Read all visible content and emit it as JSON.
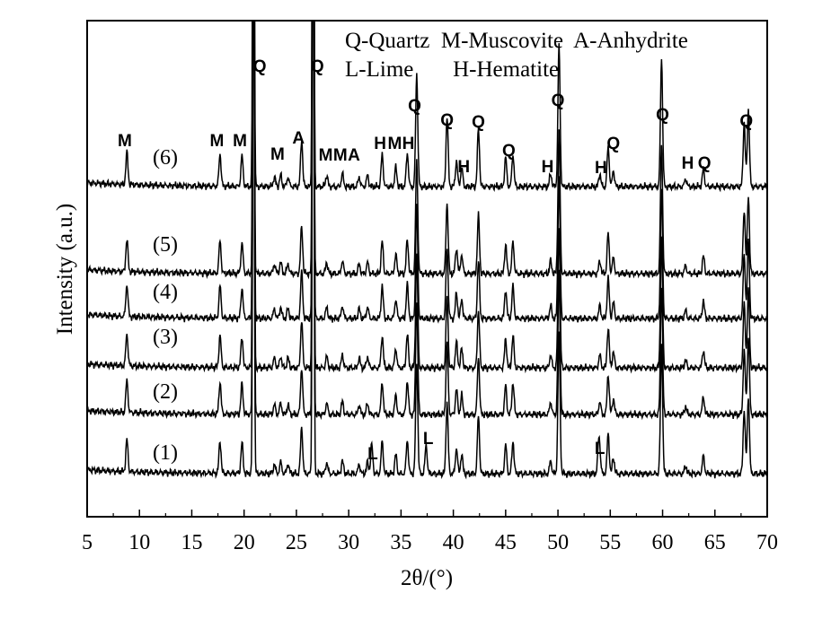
{
  "chart_data": {
    "type": "line",
    "title": "",
    "xlabel": "2θ/(°)",
    "ylabel": "Intensity (a.u.)",
    "xlim": [
      5,
      70
    ],
    "x_ticks": [
      5,
      10,
      15,
      20,
      25,
      30,
      35,
      40,
      45,
      50,
      55,
      60,
      65,
      70
    ],
    "y_ticks_shown": false,
    "grid": false,
    "legend": {
      "position": "top-right",
      "lines": [
        "Q-Quartz  M-Muscovite  A-Anhydrite",
        "L-Lime       H-Hematite"
      ]
    },
    "series": [
      {
        "name": "(1)",
        "baseline": 0,
        "extra_peaks": [
          32.2,
          37.4,
          53.9
        ]
      },
      {
        "name": "(2)",
        "baseline": 1
      },
      {
        "name": "(3)",
        "baseline": 2
      },
      {
        "name": "(4)",
        "baseline": 3
      },
      {
        "name": "(5)",
        "baseline": 4
      },
      {
        "name": "(6)",
        "baseline": 5
      }
    ],
    "common_peaks": [
      {
        "x": 8.8,
        "h": 1.0
      },
      {
        "x": 17.7,
        "h": 1.0
      },
      {
        "x": 19.8,
        "h": 0.95
      },
      {
        "x": 20.9,
        "h": 20.0
      },
      {
        "x": 22.9,
        "h": 0.3
      },
      {
        "x": 23.5,
        "h": 0.35
      },
      {
        "x": 24.2,
        "h": 0.3
      },
      {
        "x": 25.5,
        "h": 1.45
      },
      {
        "x": 26.6,
        "h": 25.0
      },
      {
        "x": 27.9,
        "h": 0.35
      },
      {
        "x": 29.4,
        "h": 0.4
      },
      {
        "x": 31.0,
        "h": 0.3
      },
      {
        "x": 31.8,
        "h": 0.35
      },
      {
        "x": 33.2,
        "h": 1.0
      },
      {
        "x": 34.5,
        "h": 0.6
      },
      {
        "x": 35.6,
        "h": 1.05
      },
      {
        "x": 36.5,
        "h": 3.5
      },
      {
        "x": 39.4,
        "h": 2.2
      },
      {
        "x": 40.3,
        "h": 0.8
      },
      {
        "x": 40.8,
        "h": 0.6
      },
      {
        "x": 42.4,
        "h": 1.8
      },
      {
        "x": 45.0,
        "h": 0.9
      },
      {
        "x": 45.7,
        "h": 1.0
      },
      {
        "x": 49.3,
        "h": 0.4
      },
      {
        "x": 50.1,
        "h": 4.4
      },
      {
        "x": 54.0,
        "h": 0.4
      },
      {
        "x": 54.8,
        "h": 1.25
      },
      {
        "x": 55.3,
        "h": 0.5
      },
      {
        "x": 59.9,
        "h": 4.0
      },
      {
        "x": 62.2,
        "h": 0.25
      },
      {
        "x": 63.9,
        "h": 0.55
      },
      {
        "x": 67.8,
        "h": 2.0
      },
      {
        "x": 68.2,
        "h": 2.4
      }
    ],
    "peak_annotations": [
      {
        "label": "M",
        "x": 8.6
      },
      {
        "label": "M",
        "x": 17.4
      },
      {
        "label": "M",
        "x": 19.6
      },
      {
        "label": "Q",
        "x": 21.5
      },
      {
        "label": "M",
        "x": 23.2
      },
      {
        "label": "A",
        "x": 25.2
      },
      {
        "label": "Q",
        "x": 27.0
      },
      {
        "label": "M",
        "x": 27.8
      },
      {
        "label": "M",
        "x": 29.2
      },
      {
        "label": "A",
        "x": 30.5
      },
      {
        "label": "H",
        "x": 33.0
      },
      {
        "label": "M",
        "x": 34.4
      },
      {
        "label": "H",
        "x": 35.7
      },
      {
        "label": "Q",
        "x": 36.3
      },
      {
        "label": "Q",
        "x": 39.4
      },
      {
        "label": "H",
        "x": 41.0
      },
      {
        "label": "Q",
        "x": 42.4
      },
      {
        "label": "Q",
        "x": 45.3
      },
      {
        "label": "H",
        "x": 49.0
      },
      {
        "label": "Q",
        "x": 50.0
      },
      {
        "label": "H",
        "x": 54.1
      },
      {
        "label": "Q",
        "x": 55.3
      },
      {
        "label": "Q",
        "x": 60.0
      },
      {
        "label": "H",
        "x": 62.4
      },
      {
        "label": "Q",
        "x": 64.0
      },
      {
        "label": "Q",
        "x": 68.0
      },
      {
        "label": "L",
        "x": 32.3
      },
      {
        "label": "L",
        "x": 37.6
      },
      {
        "label": "L",
        "x": 54.0
      }
    ]
  }
}
